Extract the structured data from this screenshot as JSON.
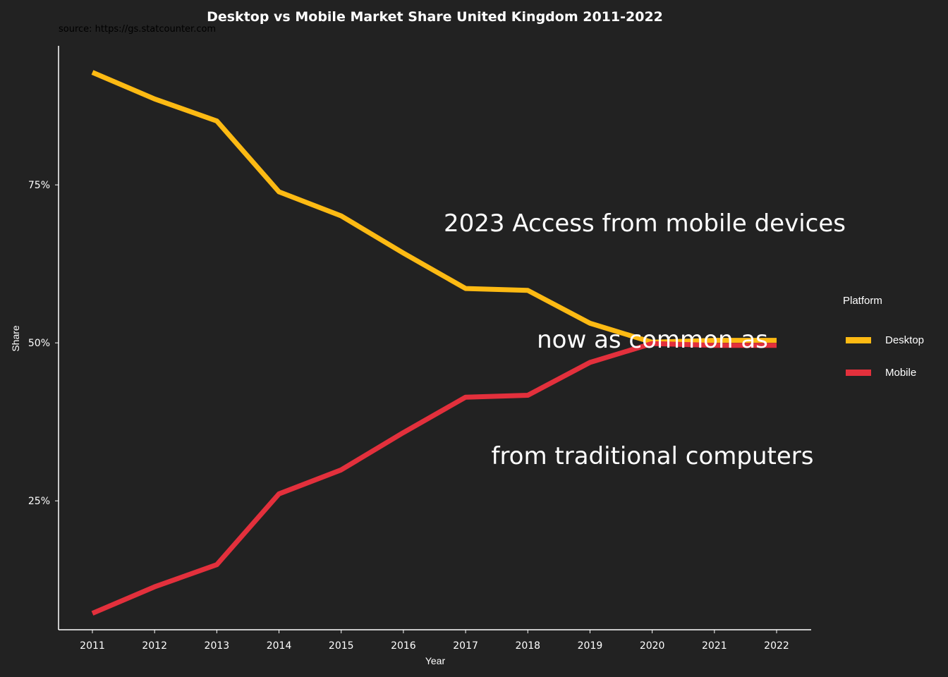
{
  "chart_data": {
    "type": "line",
    "title": "Desktop vs Mobile Market Share United Kingdom 2011-2022",
    "subtitle": "source: https://gs.statcounter.com",
    "xlabel": "Year",
    "ylabel": "Share",
    "x": [
      2011,
      2012,
      2013,
      2014,
      2015,
      2016,
      2017,
      2018,
      2019,
      2020,
      2021,
      2022
    ],
    "x_tick_labels": [
      "2011",
      "2012",
      "2013",
      "2014",
      "2015",
      "2016",
      "2017",
      "2018",
      "2019",
      "2020",
      "2021",
      "2022"
    ],
    "y_ticks": [
      25,
      50,
      75
    ],
    "y_tick_labels": [
      "25%",
      "50%",
      "75%"
    ],
    "ylim": [
      4.6,
      97
    ],
    "grid": false,
    "legend_title": "Platform",
    "legend_position": "right",
    "series": [
      {
        "name": "Desktop",
        "color": "#FDBA13",
        "values": [
          92.8,
          88.6,
          85.1,
          73.9,
          70.1,
          64.2,
          58.6,
          58.3,
          53.1,
          50.1,
          50.4,
          50.4
        ]
      },
      {
        "name": "Mobile",
        "color": "#E3303C",
        "values": [
          7.2,
          11.4,
          14.9,
          26.1,
          29.9,
          35.8,
          41.4,
          41.7,
          46.9,
          49.9,
          49.6,
          49.6
        ]
      }
    ],
    "annotation": [
      "2023 Access from mobile devices",
      "now as common as",
      "from traditional computers"
    ]
  }
}
